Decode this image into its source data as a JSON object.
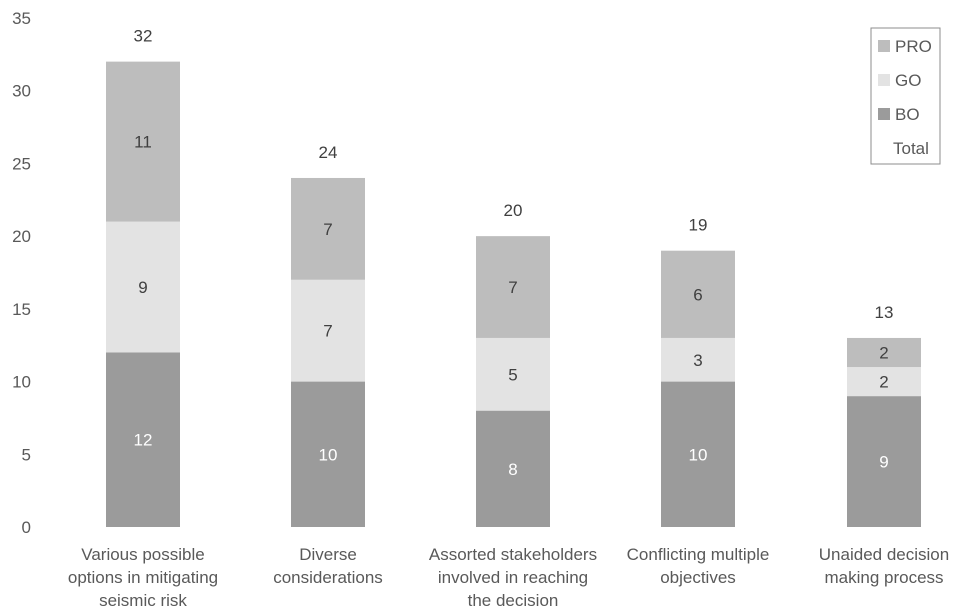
{
  "chart_data": {
    "type": "bar",
    "stacked": true,
    "categories": [
      "Various possible options in mitigating seismic risk",
      "Diverse considerations",
      "Assorted stakeholders involved in reaching the decision",
      "Conflicting multiple objectives",
      "Unaided decision making process"
    ],
    "category_lines": [
      [
        "Various possible",
        "options in mitigating",
        "seismic risk"
      ],
      [
        "Diverse",
        "considerations"
      ],
      [
        "Assorted stakeholders",
        "involved in reaching",
        "the decision"
      ],
      [
        "Conflicting multiple",
        "objectives"
      ],
      [
        "Unaided decision",
        "making process"
      ]
    ],
    "series": [
      {
        "name": "BO",
        "values": [
          12,
          10,
          8,
          10,
          9
        ],
        "color": "#9b9b9b"
      },
      {
        "name": "GO",
        "values": [
          9,
          7,
          5,
          3,
          2
        ],
        "color": "#e3e3e3"
      },
      {
        "name": "PRO",
        "values": [
          11,
          7,
          7,
          6,
          2
        ],
        "color": "#bdbdbd"
      }
    ],
    "totals": {
      "name": "Total",
      "values": [
        32,
        24,
        20,
        19,
        13
      ]
    },
    "legend_order": [
      "PRO",
      "GO",
      "BO",
      "Total"
    ],
    "title": "",
    "xlabel": "",
    "ylabel": "",
    "ylim": [
      0,
      35
    ],
    "yticks": [
      0,
      5,
      10,
      15,
      20,
      25,
      30,
      35
    ],
    "grid": false,
    "legend_position": "top-right"
  }
}
